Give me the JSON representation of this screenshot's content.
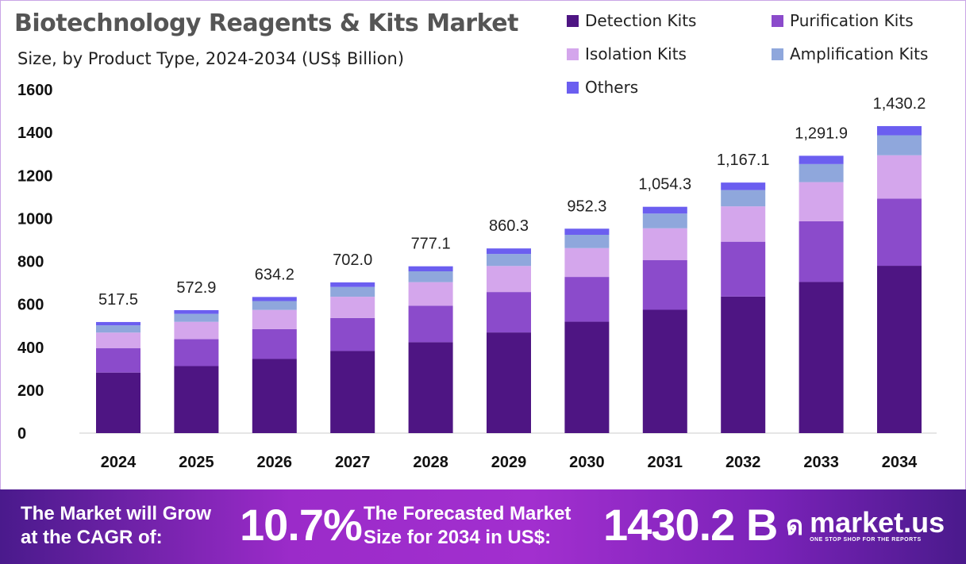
{
  "chart_data": {
    "type": "bar",
    "stacked": true,
    "title": "Biotechnology Reagents & Kits Market",
    "subtitle": "Size, by Product Type, 2024-2034 (US$ Billion)",
    "categories": [
      "2024",
      "2025",
      "2026",
      "2027",
      "2028",
      "2029",
      "2030",
      "2031",
      "2032",
      "2033",
      "2034"
    ],
    "totals": [
      "517.5",
      "572.9",
      "634.2",
      "702.0",
      "777.1",
      "860.3",
      "952.3",
      "1,054.3",
      "1,167.1",
      "1,291.9",
      "1,430.2"
    ],
    "series": [
      {
        "name": "Detection Kits",
        "color": "#4e1583",
        "values": [
          282.0,
          312.2,
          345.6,
          382.6,
          423.5,
          468.9,
          519.0,
          574.6,
          636.1,
          704.1,
          779.5
        ]
      },
      {
        "name": "Purification Kits",
        "color": "#8b4bcb",
        "values": [
          113.3,
          125.5,
          138.9,
          153.7,
          170.2,
          188.4,
          208.6,
          230.9,
          255.6,
          282.9,
          313.2
        ]
      },
      {
        "name": "Isolation Kits",
        "color": "#d4a6ec",
        "values": [
          73.0,
          80.8,
          89.4,
          99.0,
          109.6,
          121.3,
          134.3,
          148.7,
          164.6,
          182.2,
          201.7
        ]
      },
      {
        "name": "Amplification Kits",
        "color": "#8fa7dc",
        "values": [
          33.6,
          37.2,
          41.2,
          45.6,
          50.5,
          55.9,
          61.9,
          68.5,
          75.9,
          84.0,
          93.0
        ]
      },
      {
        "name": "Others",
        "color": "#6b5ef0",
        "values": [
          15.6,
          17.2,
          19.1,
          21.1,
          23.3,
          25.8,
          28.5,
          31.6,
          34.9,
          38.7,
          42.8
        ]
      }
    ],
    "yticks": [
      "0",
      "200",
      "400",
      "600",
      "800",
      "1000",
      "1200",
      "1400",
      "1600"
    ],
    "ylim": [
      0,
      1600
    ],
    "grid": false,
    "legend": "top-right"
  },
  "footer": {
    "cagr_text_1": "The Market will Grow",
    "cagr_text_2": "at the CAGR of:",
    "cagr_value": "10.7%",
    "forecast_text_1": "The Forecasted Market",
    "forecast_text_2": "Size for 2034 in US$:",
    "forecast_value": "1430.2 B",
    "logo_text": "market.us",
    "logo_tagline": "ONE STOP SHOP FOR THE REPORTS"
  }
}
